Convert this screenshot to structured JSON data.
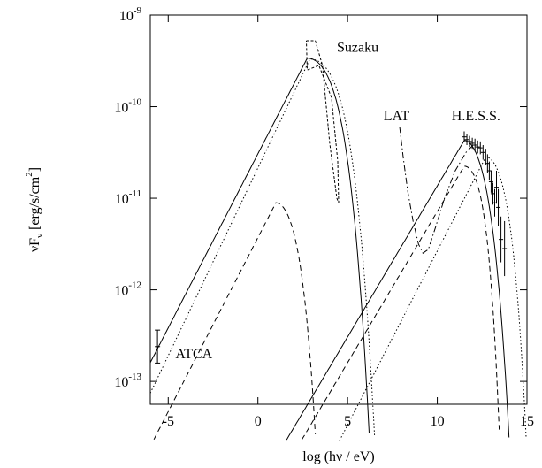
{
  "chart_data": {
    "type": "line",
    "title": "",
    "xlabel": "log (hν / eV)",
    "ylabel": {
      "prefix": "νF",
      "subscript": "ν",
      "unit_open": " [erg/s/cm",
      "unit_exp": "2",
      "unit_close": "]"
    },
    "xlim": [
      -6,
      15
    ],
    "ylim": [
      -13.25,
      -9
    ],
    "y_scale": "log",
    "grid": false,
    "legend": "none",
    "x_ticks": [
      {
        "value": -5,
        "label": "-5"
      },
      {
        "value": 0,
        "label": "0"
      },
      {
        "value": 5,
        "label": "5"
      },
      {
        "value": 10,
        "label": "10"
      },
      {
        "value": 15,
        "label": "15"
      }
    ],
    "y_ticks": [
      {
        "value": -13,
        "base": "10",
        "exp": "-13"
      },
      {
        "value": -12,
        "base": "10",
        "exp": "-12"
      },
      {
        "value": -11,
        "base": "10",
        "exp": "-11"
      },
      {
        "value": -10,
        "base": "10",
        "exp": "-10"
      },
      {
        "value": -9,
        "base": "10",
        "exp": "-9"
      }
    ],
    "annotations": [
      {
        "text": "Suzaku",
        "x": 4.4,
        "y": -9.4
      },
      {
        "text": "LAT",
        "x": 7.0,
        "y": -10.15
      },
      {
        "text": "H.E.S.S.",
        "x": 10.8,
        "y": -10.15
      },
      {
        "text": "ATCA",
        "x": -4.6,
        "y": -12.75
      }
    ],
    "series": [
      {
        "style": "solid",
        "components": [
          {
            "peak_x": 2.75,
            "peak_y": -9.47,
            "rise_slope": 0.38,
            "fall_a": 0.13,
            "fall_b": 0.018
          },
          {
            "peak_x": 11.5,
            "peak_y": -10.37,
            "rise_slope": 0.33,
            "fall_a": 0.3,
            "fall_b": 0.035
          }
        ]
      },
      {
        "style": "dashed",
        "components": [
          {
            "peak_x": 1.0,
            "peak_y": -11.05,
            "rise_slope": 0.38,
            "fall_a": 0.28,
            "fall_b": 0.05
          },
          {
            "peak_x": 11.5,
            "peak_y": -10.65,
            "rise_slope": 0.33,
            "fall_a": 0.3,
            "fall_b": 0.12
          }
        ]
      },
      {
        "style": "dotted",
        "components": [
          {
            "peak_x": 2.9,
            "peak_y": -9.48,
            "rise_slope": 0.41,
            "fall_a": 0.11,
            "fall_b": 0.016
          },
          {
            "peak_x": 12.7,
            "peak_y": -10.55,
            "rise_slope": 0.38,
            "fall_a": 0.3,
            "fall_b": 0.06
          }
        ]
      }
    ],
    "lat_curve": {
      "style": "dash-dot",
      "points": [
        [
          7.9,
          -10.22
        ],
        [
          8.1,
          -10.55
        ],
        [
          8.35,
          -10.92
        ],
        [
          8.65,
          -11.25
        ],
        [
          8.95,
          -11.5
        ],
        [
          9.2,
          -11.6
        ],
        [
          9.5,
          -11.56
        ],
        [
          9.9,
          -11.32
        ],
        [
          10.4,
          -11.0
        ],
        [
          11.0,
          -10.7
        ],
        [
          11.6,
          -10.5
        ],
        [
          12.0,
          -10.42
        ]
      ]
    },
    "suzaku_bowtie": [
      [
        2.7,
        -9.28
      ],
      [
        3.2,
        -9.28
      ],
      [
        3.6,
        -9.55
      ],
      [
        4.0,
        -10.4
      ],
      [
        4.4,
        -11.0
      ],
      [
        4.5,
        -11.05
      ],
      [
        4.45,
        -10.6
      ],
      [
        4.1,
        -9.9
      ],
      [
        3.4,
        -9.55
      ],
      [
        2.75,
        -9.6
      ],
      [
        2.7,
        -9.28
      ]
    ],
    "atca_points": [
      {
        "x": -5.6,
        "y": -12.62,
        "yerr_lo": 0.18,
        "yerr_hi": 0.18
      }
    ],
    "hess_points": [
      {
        "x": 11.5,
        "y": -10.33,
        "err": 0.06
      },
      {
        "x": 11.65,
        "y": -10.36,
        "err": 0.06
      },
      {
        "x": 11.8,
        "y": -10.38,
        "err": 0.06
      },
      {
        "x": 11.95,
        "y": -10.4,
        "err": 0.06
      },
      {
        "x": 12.1,
        "y": -10.42,
        "err": 0.07
      },
      {
        "x": 12.25,
        "y": -10.44,
        "err": 0.07
      },
      {
        "x": 12.4,
        "y": -10.45,
        "err": 0.07
      },
      {
        "x": 12.55,
        "y": -10.5,
        "err": 0.08
      },
      {
        "x": 12.7,
        "y": -10.55,
        "err": 0.09
      },
      {
        "x": 12.8,
        "y": -10.62,
        "err": 0.1
      },
      {
        "x": 12.9,
        "y": -10.7,
        "err": 0.1
      },
      {
        "x": 13.0,
        "y": -10.82,
        "err": 0.12
      },
      {
        "x": 13.1,
        "y": -10.95,
        "err": 0.12
      },
      {
        "x": 13.2,
        "y": -11.05,
        "err": 0.15
      },
      {
        "x": 13.3,
        "y": -10.88,
        "err": 0.18
      },
      {
        "x": 13.4,
        "y": -11.1,
        "err": 0.2
      },
      {
        "x": 13.55,
        "y": -11.45,
        "err": 0.25
      },
      {
        "x": 13.75,
        "y": -11.55,
        "err": 0.3
      }
    ]
  }
}
